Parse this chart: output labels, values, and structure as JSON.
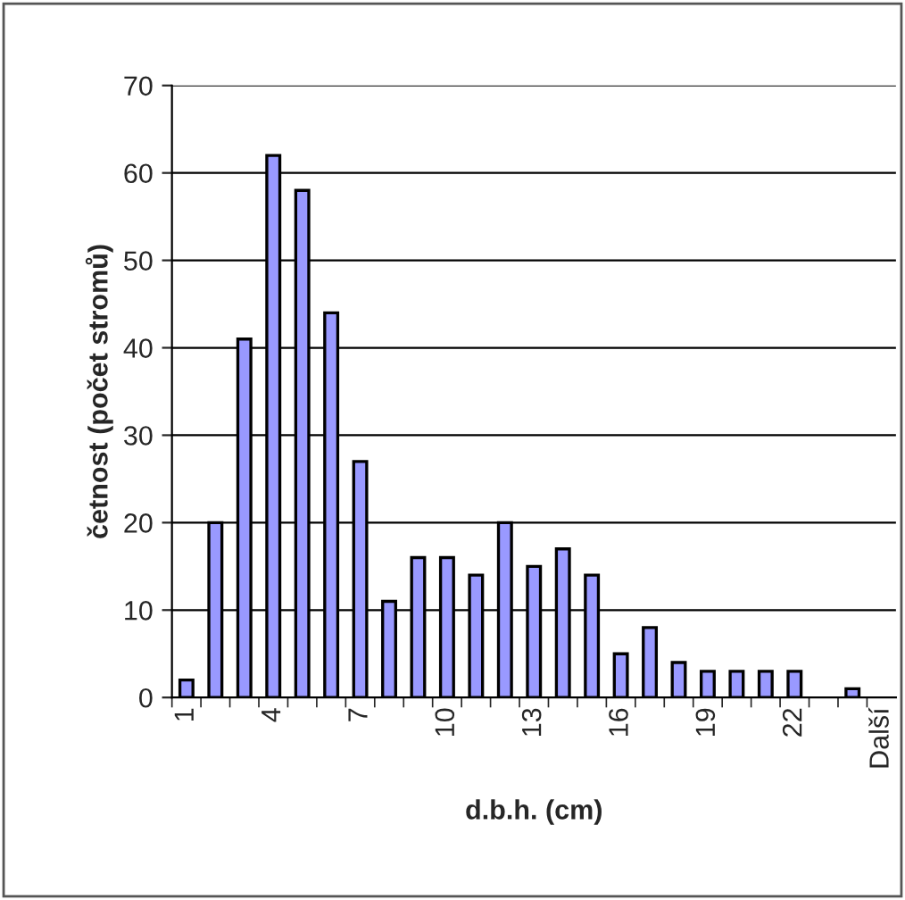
{
  "chart_data": {
    "type": "bar",
    "xlabel": "d.b.h. (cm)",
    "ylabel": "četnost (počet stromů)",
    "categories": [
      "1",
      null,
      null,
      "4",
      null,
      null,
      "7",
      null,
      null,
      "10",
      null,
      null,
      "13",
      null,
      null,
      "16",
      null,
      null,
      "19",
      null,
      null,
      "22",
      null,
      null,
      "Další"
    ],
    "values": [
      2,
      20,
      41,
      62,
      58,
      44,
      27,
      11,
      16,
      16,
      14,
      20,
      15,
      17,
      14,
      5,
      8,
      4,
      3,
      3,
      3,
      3,
      0,
      1,
      0
    ],
    "color": "#9999ff",
    "ylim": [
      0,
      70
    ],
    "yticks": [
      0,
      10,
      20,
      30,
      40,
      50,
      60,
      70
    ],
    "grid": "y",
    "legend": false
  }
}
